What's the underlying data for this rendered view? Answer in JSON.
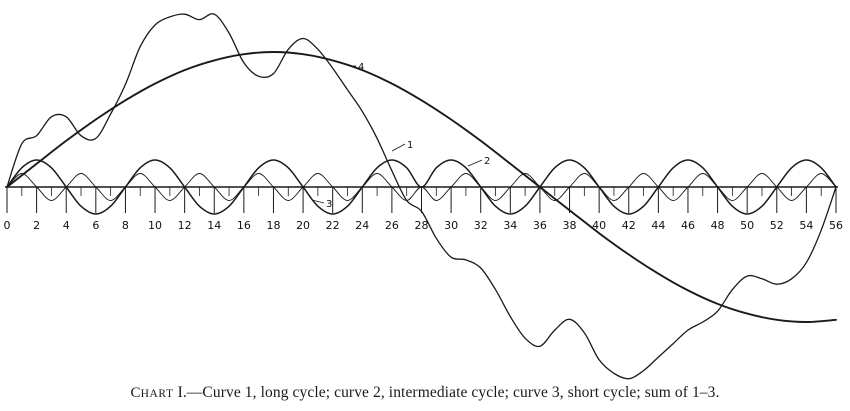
{
  "caption": {
    "chart_word_initial": "C",
    "chart_word_rest": "HART",
    "text": " I.—Curve 1, long cycle; curve 2, intermediate cycle; curve 3, short cycle; sum of 1–3."
  },
  "colors": {
    "ink": "#1a1a1a",
    "background": "#ffffff"
  },
  "chart_data": {
    "type": "line",
    "x_ticks": [
      "0",
      "2",
      "4",
      "6",
      "8",
      "10",
      "12",
      "14",
      "16",
      "18",
      "20",
      "22",
      "24",
      "26",
      "28",
      "30",
      "32",
      "34",
      "36",
      "38",
      "40",
      "42",
      "44",
      "46",
      "48",
      "50",
      "52",
      "54",
      "56"
    ],
    "xlim": [
      0,
      56
    ],
    "ylim": [
      -7,
      7
    ],
    "grid": false,
    "legend": "none",
    "series": [
      {
        "name": "1",
        "x": [
          0,
          2,
          4,
          6,
          8,
          10,
          12,
          14,
          16,
          18,
          20,
          22,
          24,
          26,
          28,
          30,
          32,
          34,
          36,
          38,
          40,
          42,
          44,
          46,
          48,
          50,
          52,
          54,
          56
        ],
        "values": [
          0,
          0.86,
          1.71,
          2.5,
          3.21,
          3.83,
          4.33,
          4.69,
          4.92,
          5.0,
          4.92,
          4.69,
          4.33,
          3.83,
          3.21,
          2.5,
          1.71,
          0.86,
          0,
          -0.86,
          -1.71,
          -2.5,
          -3.21,
          -3.83,
          -4.33,
          -4.69,
          -4.92,
          -5.0,
          -4.92
        ]
      },
      {
        "name": "2",
        "x": [
          0,
          1,
          2,
          3,
          4,
          5,
          6,
          7,
          8,
          9,
          10,
          11,
          12,
          13,
          14,
          15,
          16,
          17,
          18,
          19,
          20,
          21,
          22,
          23,
          24,
          25,
          26,
          27,
          28,
          29,
          30,
          31,
          32,
          33,
          34,
          35,
          36,
          37,
          38,
          39,
          40,
          41,
          42,
          43,
          44,
          45,
          46,
          47,
          48,
          49,
          50,
          51,
          52,
          53,
          54,
          55,
          56
        ],
        "values": [
          0,
          0.71,
          1.0,
          0.71,
          0,
          -0.71,
          -1.0,
          -0.71,
          0,
          0.71,
          1.0,
          0.71,
          0,
          -0.71,
          -1.0,
          -0.71,
          0,
          0.71,
          1.0,
          0.71,
          0,
          -0.71,
          -1.0,
          -0.71,
          0,
          0.71,
          1.0,
          0.71,
          0,
          0.71,
          1.0,
          0.71,
          0,
          -0.71,
          -1.0,
          -0.71,
          0,
          0.71,
          1.0,
          0.71,
          0,
          -0.71,
          -1.0,
          -0.71,
          0,
          0.71,
          1.0,
          0.71,
          0,
          -0.71,
          -1.0,
          -0.71,
          0,
          0.71,
          1.0,
          0.71,
          0
        ]
      },
      {
        "name": "3",
        "x": [
          0,
          1,
          2,
          3,
          4,
          5,
          6,
          7,
          8,
          9,
          10,
          11,
          12,
          13,
          14,
          15,
          16,
          17,
          18,
          19,
          20,
          21,
          22,
          23,
          24,
          25,
          26,
          27,
          28,
          29,
          30,
          31,
          32,
          33,
          34,
          35,
          36,
          37,
          38,
          39,
          40,
          41,
          42,
          43,
          44,
          45,
          46,
          47,
          48,
          49,
          50,
          51,
          52,
          53,
          54,
          55,
          56
        ],
        "values": [
          0,
          0.5,
          0,
          -0.5,
          0,
          0.5,
          0,
          -0.5,
          0,
          0.5,
          0,
          -0.5,
          0,
          0.5,
          0,
          -0.5,
          0,
          0.5,
          0,
          -0.5,
          0,
          0.5,
          0,
          -0.5,
          0,
          0.5,
          0,
          -0.5,
          0,
          -0.5,
          0,
          0.5,
          0,
          -0.5,
          0,
          0.5,
          0,
          -0.5,
          0,
          0.5,
          0,
          -0.5,
          0,
          0.5,
          0,
          -0.5,
          0,
          0.5,
          0,
          -0.5,
          0,
          0.5,
          0,
          -0.5,
          0,
          0.5,
          0
        ]
      },
      {
        "name": "4",
        "x": [
          0,
          1,
          2,
          3,
          4,
          5,
          6,
          7,
          8,
          9,
          10,
          11,
          12,
          13,
          14,
          15,
          16,
          17,
          18,
          19,
          20,
          21,
          22,
          23,
          24,
          25,
          26,
          27,
          28,
          29,
          30,
          31,
          32,
          33,
          34,
          35,
          36,
          37,
          38,
          39,
          40,
          41,
          42,
          43,
          44,
          45,
          46,
          47,
          48,
          49,
          50,
          51,
          52,
          53,
          54,
          55,
          56
        ],
        "values": [
          0,
          1.6,
          1.9,
          2.6,
          2.6,
          1.9,
          1.8,
          2.7,
          3.8,
          5.2,
          6.0,
          6.3,
          6.4,
          6.2,
          6.4,
          5.7,
          4.6,
          4.1,
          4.2,
          5.1,
          5.5,
          5.1,
          4.4,
          3.6,
          2.8,
          1.8,
          0.6,
          -0.5,
          -0.9,
          -1.9,
          -2.6,
          -2.7,
          -3.0,
          -3.8,
          -4.8,
          -5.6,
          -5.9,
          -5.3,
          -4.9,
          -5.4,
          -6.4,
          -6.9,
          -7.1,
          -6.8,
          -6.3,
          -5.8,
          -5.3,
          -5.0,
          -4.6,
          -3.8,
          -3.3,
          -3.4,
          -3.6,
          -3.4,
          -2.8,
          -1.6,
          0
        ]
      }
    ],
    "curve_labels": [
      "1",
      "2",
      "3",
      "4"
    ]
  }
}
